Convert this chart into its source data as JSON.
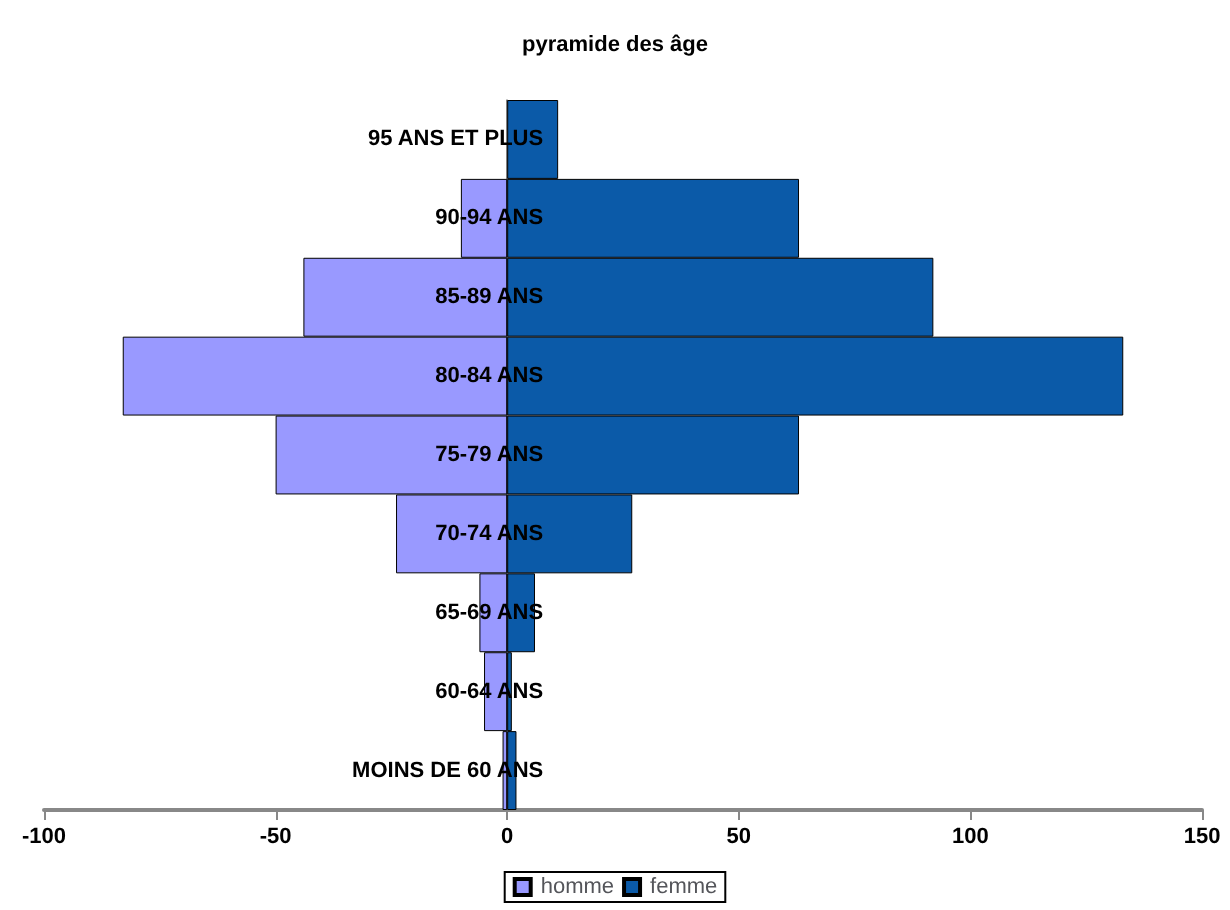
{
  "chart_data": {
    "type": "bar",
    "orientation": "horizontal",
    "title": "pyramide des âge",
    "categories": [
      "95 ANS ET PLUS",
      "90-94 ANS",
      "85-89 ANS",
      "80-84 ANS",
      "75-79 ANS",
      "70-74 ANS",
      "65-69 ANS",
      "60-64 ANS",
      "MOINS DE 60 ANS"
    ],
    "series": [
      {
        "name": "homme",
        "color": "#9999ff",
        "values": [
          null,
          -10,
          -44,
          -83,
          -50,
          -24,
          -6,
          -5,
          -1
        ]
      },
      {
        "name": "femme",
        "color": "#0b5aa8",
        "values": [
          11,
          63,
          92,
          133,
          63,
          27,
          6,
          1,
          2
        ]
      }
    ],
    "xlim": [
      -100,
      150
    ],
    "xticks": [
      -100,
      -50,
      0,
      50,
      100,
      150
    ],
    "stacked": true,
    "grid": false,
    "legend": "bottom"
  }
}
